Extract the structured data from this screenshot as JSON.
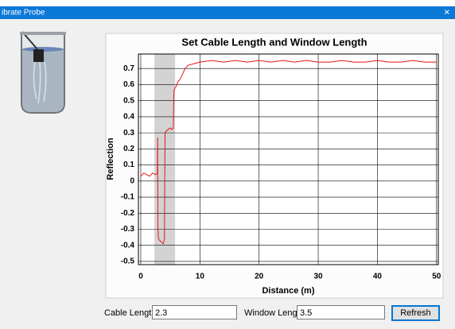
{
  "window": {
    "title": "ibrate Probe",
    "close": "×"
  },
  "chart_data": {
    "type": "line",
    "title": "Set Cable Length and Window Length",
    "x_label": "Distance (m)",
    "y_label": "Reflection",
    "x": [
      0,
      0.5,
      1,
      1.5,
      2,
      2.5,
      2.8,
      2.85,
      2.9,
      3.0,
      3.2,
      3.5,
      3.8,
      4.0,
      4.1,
      4.3,
      4.6,
      5.0,
      5.3,
      5.5,
      5.6,
      5.8,
      6.0,
      6.3,
      6.6,
      7.0,
      7.5,
      8.0,
      9,
      10,
      12,
      14,
      16,
      18,
      20,
      22,
      24,
      26,
      28,
      30,
      32,
      34,
      36,
      38,
      40,
      42,
      44,
      46,
      48,
      50
    ],
    "values": [
      0.03,
      0.05,
      0.04,
      0.03,
      0.05,
      0.04,
      0.05,
      0.27,
      -0.3,
      -0.36,
      -0.37,
      -0.38,
      -0.39,
      -0.36,
      0.3,
      0.31,
      0.32,
      0.33,
      0.32,
      0.33,
      0.56,
      0.58,
      0.59,
      0.62,
      0.63,
      0.66,
      0.7,
      0.72,
      0.73,
      0.74,
      0.75,
      0.74,
      0.75,
      0.74,
      0.75,
      0.74,
      0.75,
      0.74,
      0.75,
      0.74,
      0.74,
      0.75,
      0.74,
      0.74,
      0.75,
      0.74,
      0.74,
      0.75,
      0.74,
      0.74
    ],
    "color": "#e8141c",
    "xlim": [
      -0.4,
      50.3
    ],
    "xticks": [
      0,
      10,
      20,
      30,
      40,
      50
    ],
    "ylim": [
      -0.52,
      0.79
    ],
    "yticks": [
      -0.5,
      -0.4,
      -0.3,
      -0.2,
      -0.1,
      0,
      0.1,
      0.2,
      0.3,
      0.4,
      0.5,
      0.6,
      0.7
    ],
    "grid": true,
    "window_color": "#d3d3d3"
  },
  "controls": {
    "cable_length_label": "Cable Length:",
    "cable_length": 2.3,
    "window_length_label": "Window Length:",
    "window_length": 3.5,
    "refresh": "Refresh"
  }
}
